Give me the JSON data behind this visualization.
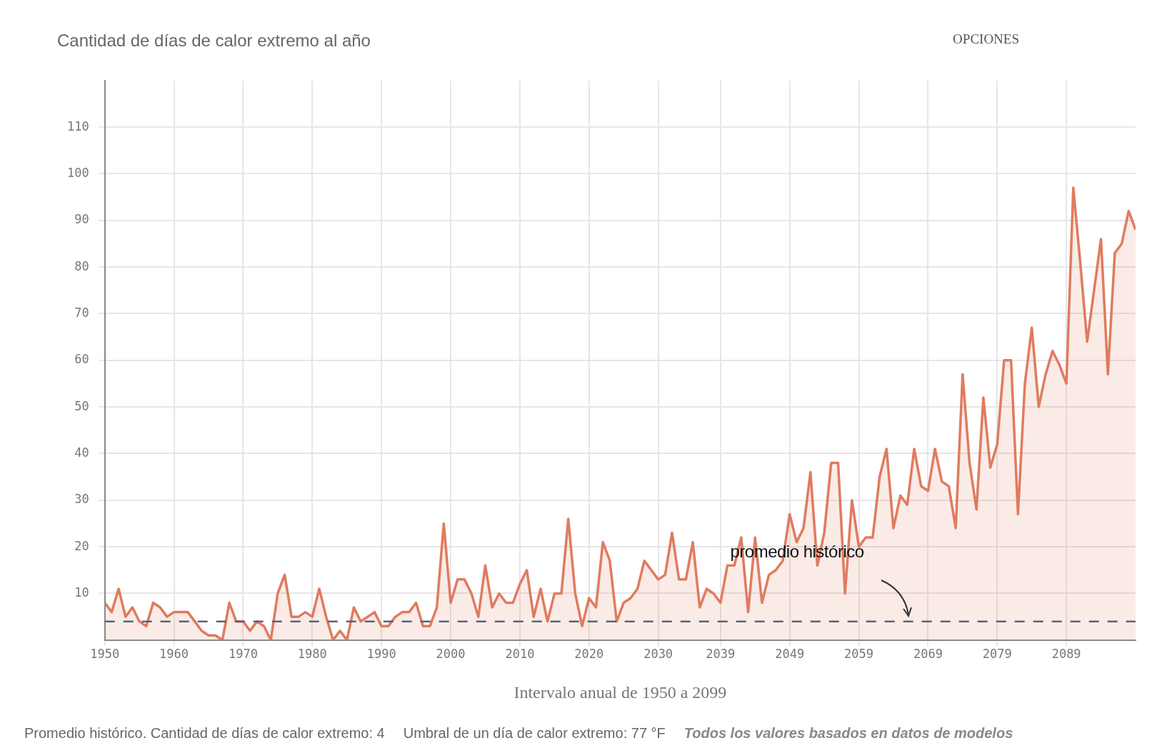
{
  "chart_data": {
    "type": "area",
    "title": "Cantidad de días de calor extremo al año",
    "xlabel": "Intervalo anual de 1950 a 2099",
    "x": [
      1950,
      1951,
      1952,
      1953,
      1954,
      1955,
      1956,
      1957,
      1958,
      1959,
      1960,
      1961,
      1962,
      1963,
      1964,
      1965,
      1966,
      1967,
      1968,
      1969,
      1970,
      1971,
      1972,
      1973,
      1974,
      1975,
      1976,
      1977,
      1978,
      1979,
      1980,
      1981,
      1982,
      1983,
      1984,
      1985,
      1986,
      1987,
      1988,
      1989,
      1990,
      1991,
      1992,
      1993,
      1994,
      1995,
      1996,
      1997,
      1998,
      1999,
      2000,
      2001,
      2002,
      2003,
      2004,
      2005,
      2006,
      2007,
      2008,
      2009,
      2010,
      2011,
      2012,
      2013,
      2014,
      2015,
      2016,
      2017,
      2018,
      2019,
      2020,
      2021,
      2022,
      2023,
      2024,
      2025,
      2026,
      2027,
      2028,
      2029,
      2030,
      2031,
      2032,
      2033,
      2034,
      2035,
      2036,
      2037,
      2038,
      2039,
      2040,
      2041,
      2042,
      2043,
      2044,
      2045,
      2046,
      2047,
      2048,
      2049,
      2050,
      2051,
      2052,
      2053,
      2054,
      2055,
      2056,
      2057,
      2058,
      2059,
      2060,
      2061,
      2062,
      2063,
      2064,
      2065,
      2066,
      2067,
      2068,
      2069,
      2070,
      2071,
      2072,
      2073,
      2074,
      2075,
      2076,
      2077,
      2078,
      2079,
      2080,
      2081,
      2082,
      2083,
      2084,
      2085,
      2086,
      2087,
      2088,
      2089,
      2090,
      2091,
      2092,
      2093,
      2094,
      2095,
      2096,
      2097,
      2098,
      2099
    ],
    "series": [
      {
        "color": "#e07b5f",
        "values": [
          8,
          6,
          11,
          5,
          7,
          4,
          3,
          8,
          7,
          5,
          6,
          6,
          6,
          4,
          2,
          1,
          1,
          0,
          8,
          4,
          4,
          2,
          4,
          3,
          0,
          10,
          14,
          5,
          5,
          6,
          5,
          11,
          5,
          0,
          2,
          0,
          7,
          4,
          5,
          6,
          3,
          3,
          5,
          6,
          6,
          8,
          3,
          3,
          7,
          25,
          8,
          13,
          13,
          10,
          5,
          16,
          7,
          10,
          8,
          8,
          12,
          15,
          5,
          11,
          4,
          10,
          10,
          26,
          10,
          3,
          9,
          7,
          21,
          17,
          4,
          8,
          9,
          11,
          17,
          15,
          13,
          14,
          23,
          13,
          13,
          21,
          7,
          11,
          10,
          8,
          16,
          16,
          22,
          6,
          22,
          8,
          14,
          15,
          17,
          27,
          21,
          24,
          36,
          16,
          23,
          38,
          38,
          10,
          30,
          20,
          22,
          22,
          35,
          41,
          24,
          31,
          29,
          41,
          33,
          32,
          41,
          34,
          33,
          24,
          57,
          38,
          28,
          52,
          37,
          42,
          60,
          60,
          27,
          55,
          67,
          50,
          57,
          62,
          59,
          55,
          97,
          81,
          64,
          75,
          86,
          57,
          83,
          85,
          92,
          88
        ]
      }
    ],
    "xlim": [
      1950,
      2099
    ],
    "xticks": [
      1950,
      1960,
      1970,
      1980,
      1990,
      2000,
      2010,
      2020,
      2030,
      2039,
      2049,
      2059,
      2069,
      2079,
      2089
    ],
    "ylim": [
      0,
      120
    ],
    "yticks": [
      10,
      20,
      30,
      40,
      50,
      60,
      70,
      80,
      90,
      100,
      110
    ],
    "ref_lines": [
      {
        "axis": "y",
        "value": 4,
        "color": "#5a6478",
        "line_style": "dashed"
      }
    ],
    "annotations": [
      "promedio histórico",
      "OPCIONES",
      "Promedio histórico. Cantidad de días de calor extremo: 4",
      "Umbral de un día de calor extremo: 77 °F",
      "Todos los valores basados en datos de modelos"
    ],
    "grid": true,
    "legend": false,
    "marker": "none",
    "line_style": "solid"
  }
}
